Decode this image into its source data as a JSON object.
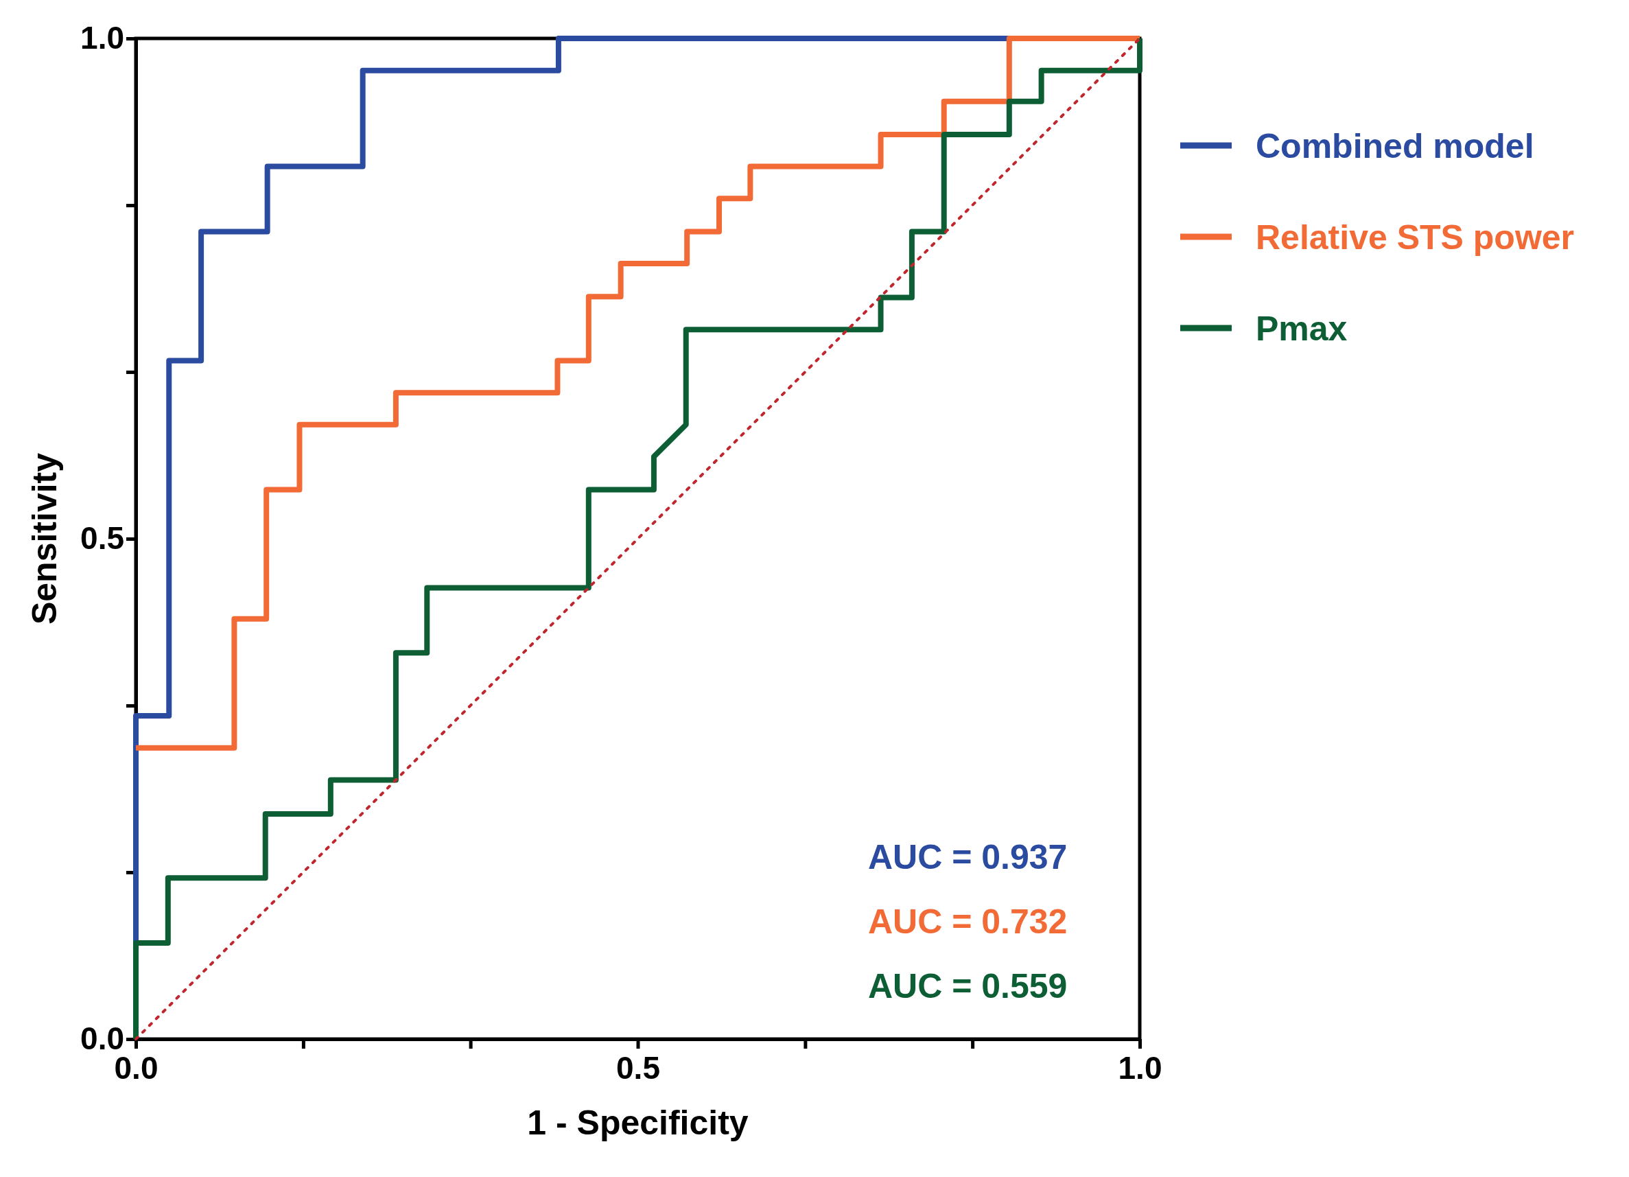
{
  "chart_data": {
    "type": "line",
    "xlabel": "1 - Specificity",
    "ylabel": "Sensitivity",
    "xlim": [
      0,
      1
    ],
    "ylim": [
      0,
      1
    ],
    "xticks": [
      {
        "value": 0,
        "label": "0.0"
      },
      {
        "value": 0.1667,
        "label": null
      },
      {
        "value": 0.3333,
        "label": null
      },
      {
        "value": 0.5,
        "label": "0.5"
      },
      {
        "value": 0.6667,
        "label": null
      },
      {
        "value": 0.8333,
        "label": null
      },
      {
        "value": 1,
        "label": "1.0"
      }
    ],
    "yticks": [
      {
        "value": 0,
        "label": "0.0"
      },
      {
        "value": 0.1667,
        "label": null
      },
      {
        "value": 0.3333,
        "label": null
      },
      {
        "value": 0.5,
        "label": "0.5"
      },
      {
        "value": 0.6667,
        "label": null
      },
      {
        "value": 0.8333,
        "label": null
      },
      {
        "value": 1,
        "label": "1.0"
      }
    ],
    "grid": false,
    "legend": "right",
    "marker": "none",
    "series": [
      {
        "name": "Combined model",
        "color": "#2b4ba0",
        "x": [
          0,
          0,
          0.033,
          0.033,
          0.065,
          0.065,
          0.131,
          0.131,
          0.226,
          0.226,
          0.421,
          0.421,
          1
        ],
        "values": [
          0,
          0.323,
          0.323,
          0.678,
          0.678,
          0.807,
          0.807,
          0.872,
          0.872,
          0.968,
          0.968,
          1,
          1
        ]
      },
      {
        "name": "Relative STS power",
        "color": "#f26a36",
        "x": [
          0,
          0.098,
          0.098,
          0.13,
          0.13,
          0.163,
          0.163,
          0.259,
          0.259,
          0.42,
          0.42,
          0.451,
          0.451,
          0.483,
          0.483,
          0.549,
          0.549,
          0.581,
          0.581,
          0.612,
          0.612,
          0.742,
          0.742,
          0.805,
          0.805,
          0.87,
          0.87,
          1
        ],
        "values": [
          0.291,
          0.291,
          0.42,
          0.42,
          0.549,
          0.549,
          0.614,
          0.614,
          0.646,
          0.646,
          0.678,
          0.678,
          0.742,
          0.742,
          0.775,
          0.775,
          0.807,
          0.807,
          0.84,
          0.84,
          0.872,
          0.872,
          0.904,
          0.904,
          0.937,
          0.937,
          1,
          1
        ]
      },
      {
        "name": "Pmax",
        "color": "#0d5e35",
        "x": [
          0,
          0,
          0.032,
          0.032,
          0.129,
          0.129,
          0.194,
          0.194,
          0.259,
          0.259,
          0.29,
          0.29,
          0.451,
          0.451,
          0.516,
          0.516,
          0.548,
          0.548,
          0.742,
          0.742,
          0.773,
          0.773,
          0.805,
          0.805,
          0.87,
          0.87,
          0.902,
          0.902,
          1,
          1
        ],
        "values": [
          0,
          0.096,
          0.096,
          0.161,
          0.161,
          0.225,
          0.225,
          0.259,
          0.259,
          0.386,
          0.386,
          0.451,
          0.451,
          0.549,
          0.549,
          0.582,
          0.614,
          0.709,
          0.709,
          0.741,
          0.741,
          0.807,
          0.807,
          0.904,
          0.904,
          0.937,
          0.937,
          0.968,
          0.968,
          1
        ]
      },
      {
        "color": "#c0262d",
        "line_style": "dotted",
        "x": [
          0,
          1
        ],
        "values": [
          0,
          1
        ]
      }
    ],
    "annotations": [
      "AUC = 0.937",
      "AUC = 0.732",
      "AUC = 0.559"
    ]
  }
}
